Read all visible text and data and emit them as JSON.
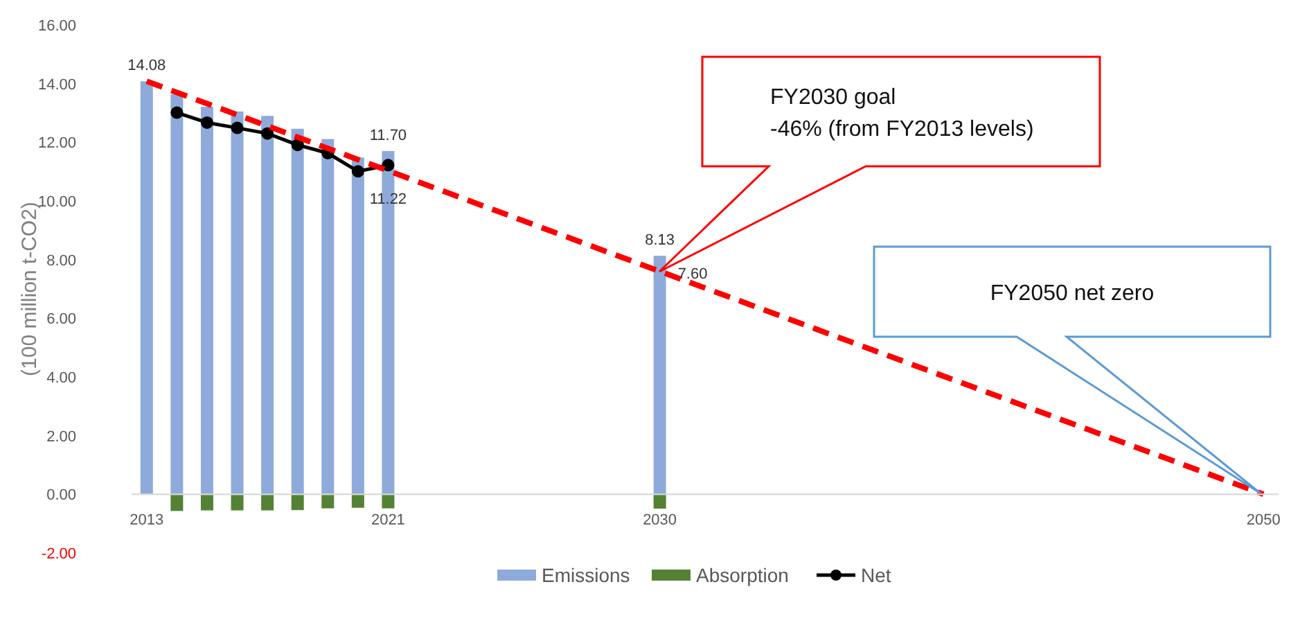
{
  "chart_data": {
    "type": "bar",
    "ylabel": "(100 million t-CO2)",
    "x": [
      2013,
      2014,
      2015,
      2016,
      2017,
      2018,
      2019,
      2020,
      2021,
      2030
    ],
    "xlim": [
      2012.5,
      2050.5
    ],
    "xticks": [
      2013,
      2021,
      2030,
      2050
    ],
    "ylim": [
      -2,
      16
    ],
    "yticks": [
      {
        "value": -2,
        "label": "-2.00"
      },
      {
        "value": 0,
        "label": "0.00"
      },
      {
        "value": 2,
        "label": "2.00"
      },
      {
        "value": 4,
        "label": "4.00"
      },
      {
        "value": 6,
        "label": "6.00"
      },
      {
        "value": 8,
        "label": "8.00"
      },
      {
        "value": 10,
        "label": "10.00"
      },
      {
        "value": 12,
        "label": "12.00"
      },
      {
        "value": 14,
        "label": "14.00"
      },
      {
        "value": 16,
        "label": "16.00"
      }
    ],
    "series": [
      {
        "name": "Emissions",
        "color": "#8eaadb",
        "values": [
          14.08,
          13.64,
          13.21,
          13.05,
          12.9,
          12.46,
          12.11,
          11.48,
          11.7,
          8.13
        ],
        "value_labels": [
          "14.08",
          null,
          null,
          null,
          null,
          null,
          null,
          null,
          "11.70",
          "8.13"
        ]
      },
      {
        "name": "Absorption",
        "color": "#548235",
        "values": [
          null,
          -0.57,
          -0.55,
          -0.55,
          -0.55,
          -0.54,
          -0.48,
          -0.46,
          -0.48,
          -0.49
        ]
      },
      {
        "name": "Net",
        "type": "line",
        "color": "#000000",
        "marker": "circle",
        "line_style": "solid",
        "x": [
          2014,
          2015,
          2016,
          2017,
          2018,
          2019,
          2020,
          2021
        ],
        "values": [
          13.01,
          12.67,
          12.49,
          12.3,
          11.91,
          11.63,
          11.01,
          11.22
        ],
        "value_labels": [
          null,
          null,
          null,
          null,
          null,
          null,
          null,
          "11.22"
        ]
      },
      {
        "type": "line",
        "color": "#ff0000",
        "marker": "none",
        "line_style": "dashed",
        "x": [
          2013,
          2030,
          2050
        ],
        "values": [
          14.08,
          7.6,
          0
        ],
        "value_labels": [
          null,
          "7.60",
          null
        ]
      }
    ],
    "annotations": [
      "FY2030 goal\n-46% (from FY2013 levels)",
      "FY2050 net zero"
    ],
    "stacked": true,
    "legend": "bottom",
    "grid": false
  }
}
